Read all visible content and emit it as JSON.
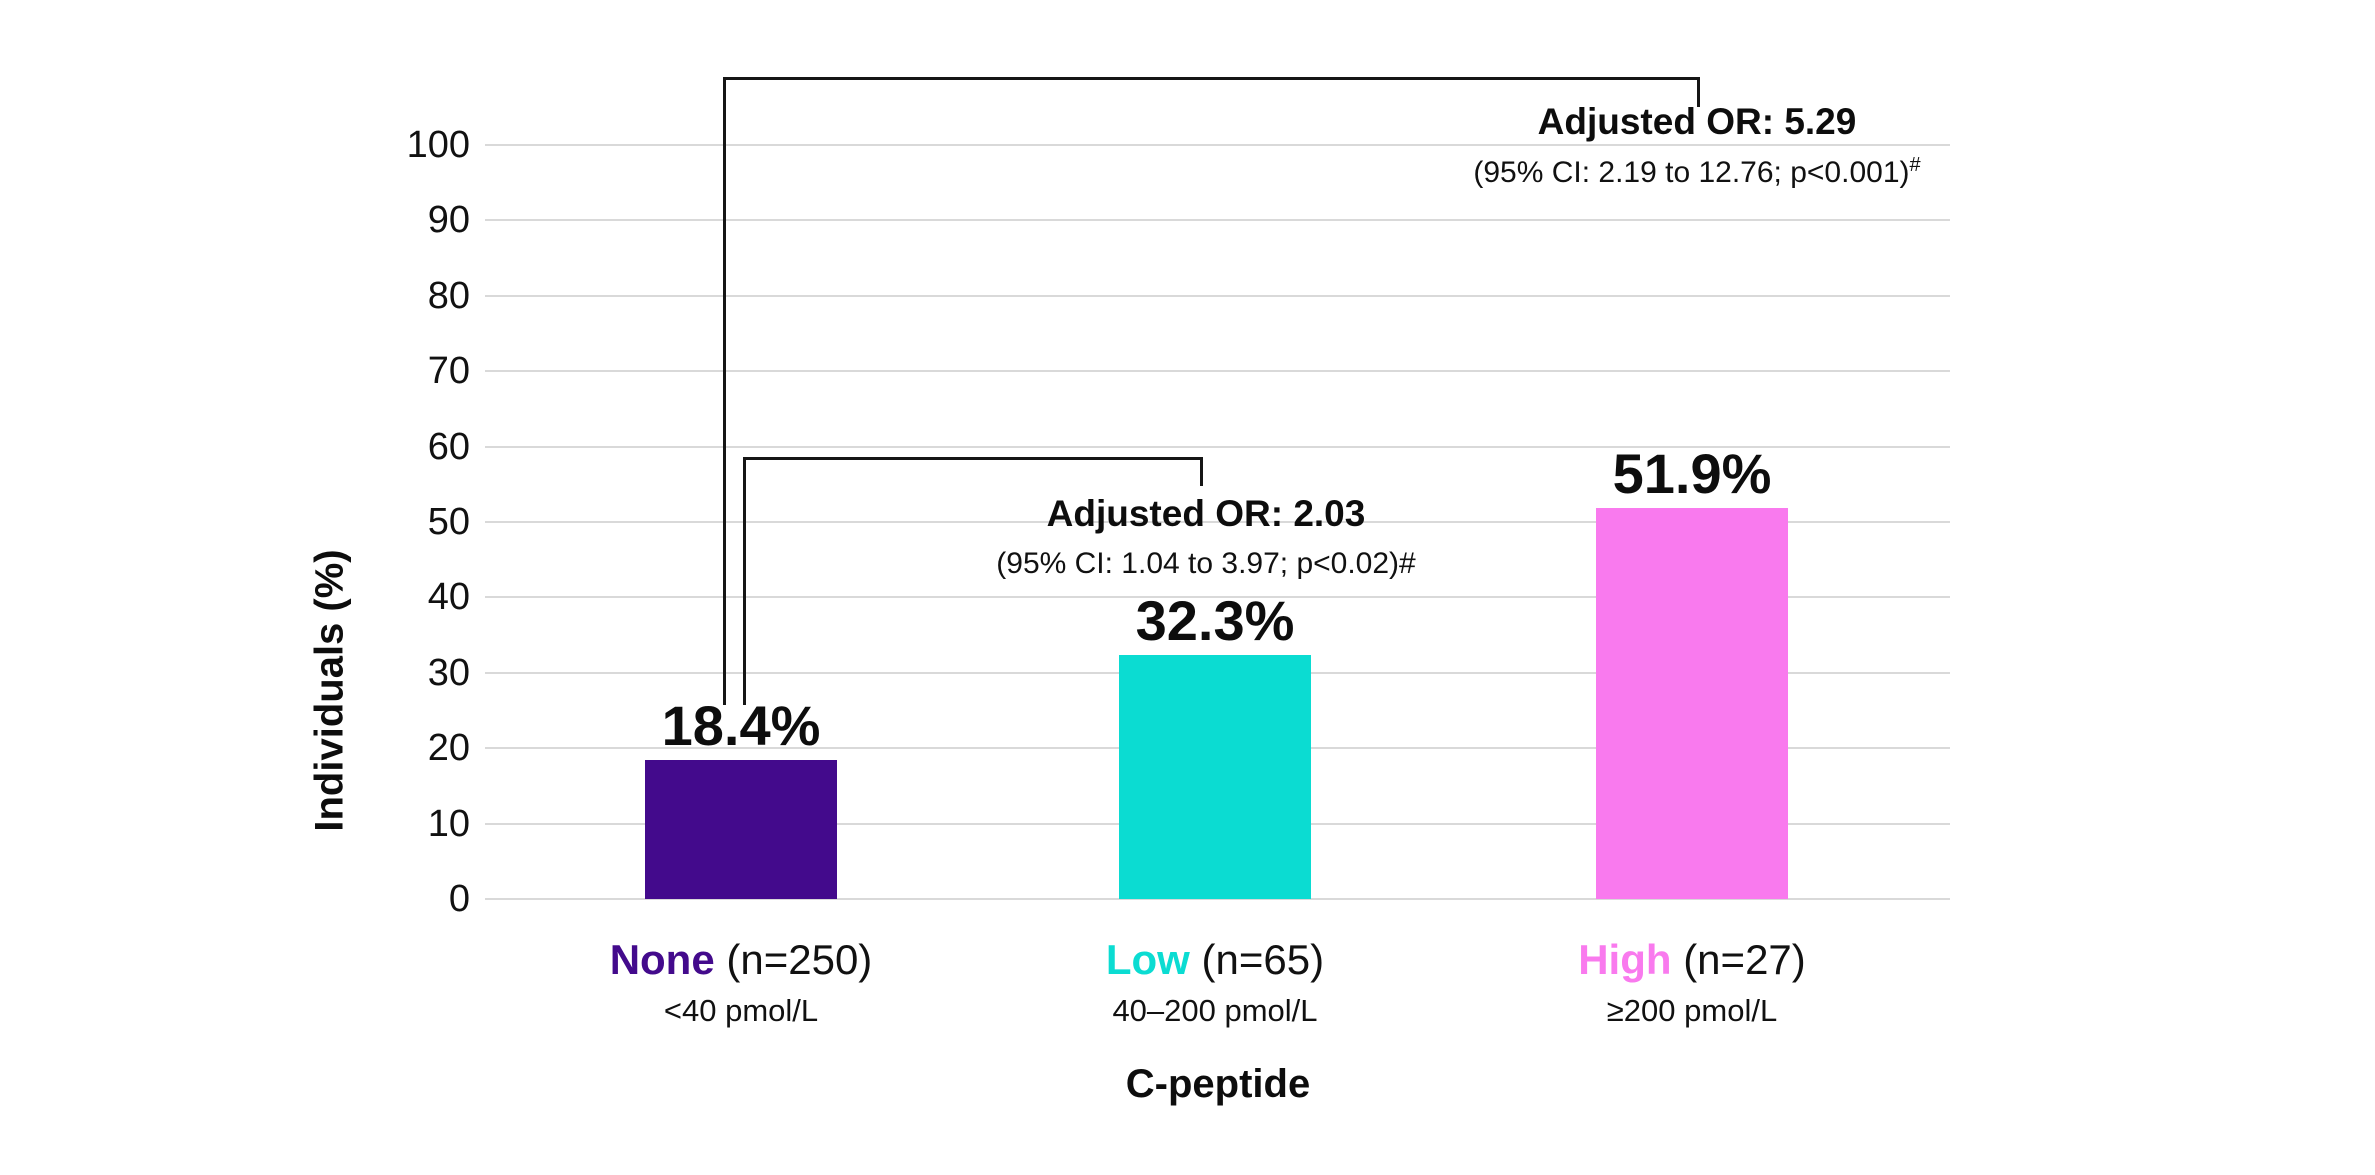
{
  "chart_data": {
    "type": "bar",
    "title": "",
    "xlabel": "C-peptide",
    "ylabel": "Individuals (%)",
    "ylim": [
      0,
      100
    ],
    "yticks": [
      0,
      10,
      20,
      30,
      40,
      50,
      60,
      70,
      80,
      90,
      100
    ],
    "grid": true,
    "legend": "none",
    "categories": [
      {
        "name": "None",
        "n_label": "(n=250)",
        "range_label": "<40 pmol/L",
        "value": 18.4,
        "value_label": "18.4%",
        "color": "#430a8c"
      },
      {
        "name": "Low",
        "n_label": "(n=65)",
        "range_label": "40–200 pmol/L",
        "value": 32.3,
        "value_label": "32.3%",
        "color": "#0bdcd2"
      },
      {
        "name": "High",
        "n_label": "(n=27)",
        "range_label": "≥200 pmol/L",
        "value": 51.9,
        "value_label": "51.9%",
        "color": "#f97aee"
      }
    ],
    "annotations": [
      {
        "or_label": "Adjusted OR: 2.03",
        "ci_label": "(95% CI: 1.04 to 3.97; p<0.02)",
        "marker": "#",
        "marker_superscript": false,
        "compares": [
          "None",
          "Low"
        ]
      },
      {
        "or_label": "Adjusted OR: 5.29",
        "ci_label": "(95% CI: 2.19 to 12.76; p<0.001)",
        "marker": "#",
        "marker_superscript": true,
        "compares": [
          "None",
          "High"
        ]
      }
    ]
  },
  "colors": {
    "background": "#ffffff",
    "gridline": "#d9d9d9",
    "bracket": "#161616",
    "text": "#111111"
  }
}
